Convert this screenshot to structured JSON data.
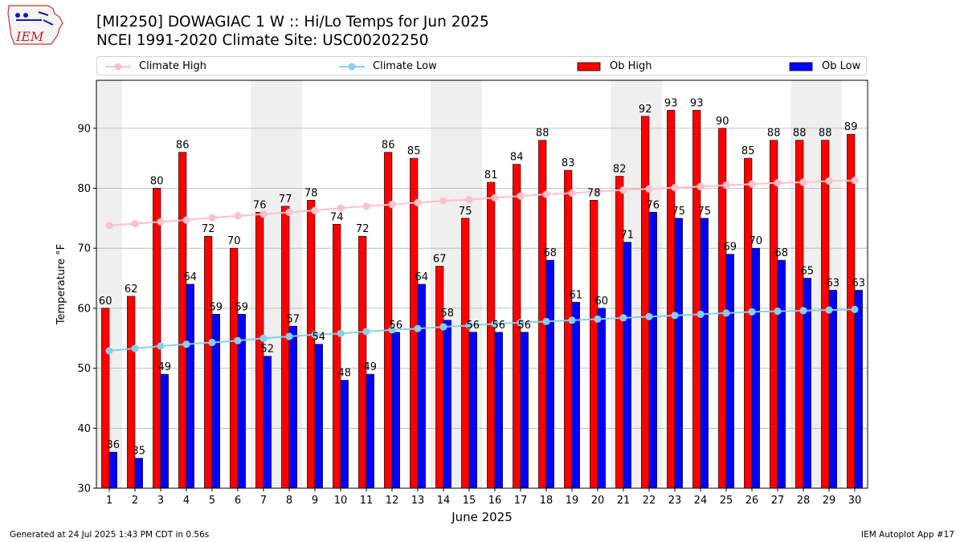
{
  "header": {
    "logo_text": "IEM",
    "title_line1": "[MI2250] DOWAGIAC 1 W :: Hi/Lo Temps for Jun 2025",
    "title_line2": "NCEI 1991-2020 Climate Site: USC00202250"
  },
  "legend": {
    "placement": "top",
    "items": [
      {
        "label": "Climate High",
        "kind": "line-marker",
        "color": "#ffc0cb"
      },
      {
        "label": "Climate Low",
        "kind": "line-marker",
        "color": "#87ceeb"
      },
      {
        "label": "Ob High",
        "kind": "bar",
        "color": "#ff0000"
      },
      {
        "label": "Ob Low",
        "kind": "bar",
        "color": "#0000ff"
      }
    ]
  },
  "footer": {
    "left": "Generated at 24 Jul 2025 1:43 PM CDT in 0.56s",
    "right": "IEM Autoplot App #17"
  },
  "chart_data": {
    "type": "bar",
    "title": "[MI2250] DOWAGIAC 1 W :: Hi/Lo Temps for Jun 2025",
    "subtitle": "NCEI 1991-2020 Climate Site: USC00202250",
    "xlabel": "June 2025",
    "ylabel": "Temperature °F",
    "ylim": [
      30,
      98
    ],
    "yticks": [
      30,
      40,
      50,
      60,
      70,
      80,
      90
    ],
    "grid": "horizontal",
    "categories": [
      "1",
      "2",
      "3",
      "4",
      "5",
      "6",
      "7",
      "8",
      "9",
      "10",
      "11",
      "12",
      "13",
      "14",
      "15",
      "16",
      "17",
      "18",
      "19",
      "20",
      "21",
      "22",
      "23",
      "24",
      "25",
      "26",
      "27",
      "28",
      "29",
      "30"
    ],
    "weekend_shading": [
      [
        1
      ],
      [
        7,
        8
      ],
      [
        14,
        15
      ],
      [
        21,
        22
      ],
      [
        28,
        29
      ]
    ],
    "shading_color": "#efefef",
    "series": [
      {
        "name": "Ob High",
        "type": "bar",
        "color": "#ff0000",
        "values": [
          60,
          62,
          80,
          86,
          72,
          70,
          76,
          77,
          78,
          74,
          72,
          86,
          85,
          67,
          75,
          81,
          84,
          88,
          83,
          78,
          82,
          92,
          93,
          93,
          90,
          85,
          88,
          88,
          88,
          89
        ]
      },
      {
        "name": "Ob Low",
        "type": "bar",
        "color": "#0000ff",
        "values": [
          36,
          35,
          49,
          64,
          59,
          59,
          52,
          57,
          54,
          48,
          49,
          56,
          64,
          58,
          56,
          56,
          56,
          68,
          61,
          60,
          71,
          76,
          75,
          75,
          69,
          70,
          68,
          65,
          63,
          63
        ]
      },
      {
        "name": "Climate High",
        "type": "line",
        "color": "#ffc0cb",
        "values": [
          73.8,
          74.1,
          74.4,
          74.7,
          75.1,
          75.4,
          75.7,
          76.0,
          76.3,
          76.7,
          77.0,
          77.3,
          77.6,
          77.9,
          78.1,
          78.4,
          78.7,
          79.0,
          79.2,
          79.5,
          79.7,
          79.9,
          80.1,
          80.3,
          80.5,
          80.7,
          80.9,
          81.0,
          81.2,
          81.3
        ]
      },
      {
        "name": "Climate Low",
        "type": "line",
        "color": "#87ceeb",
        "values": [
          52.9,
          53.3,
          53.7,
          54.0,
          54.3,
          54.6,
          55.0,
          55.3,
          55.6,
          55.8,
          56.1,
          56.4,
          56.6,
          56.9,
          57.1,
          57.4,
          57.6,
          57.8,
          58.0,
          58.2,
          58.4,
          58.6,
          58.8,
          59.0,
          59.2,
          59.4,
          59.5,
          59.6,
          59.7,
          59.8
        ]
      }
    ]
  }
}
